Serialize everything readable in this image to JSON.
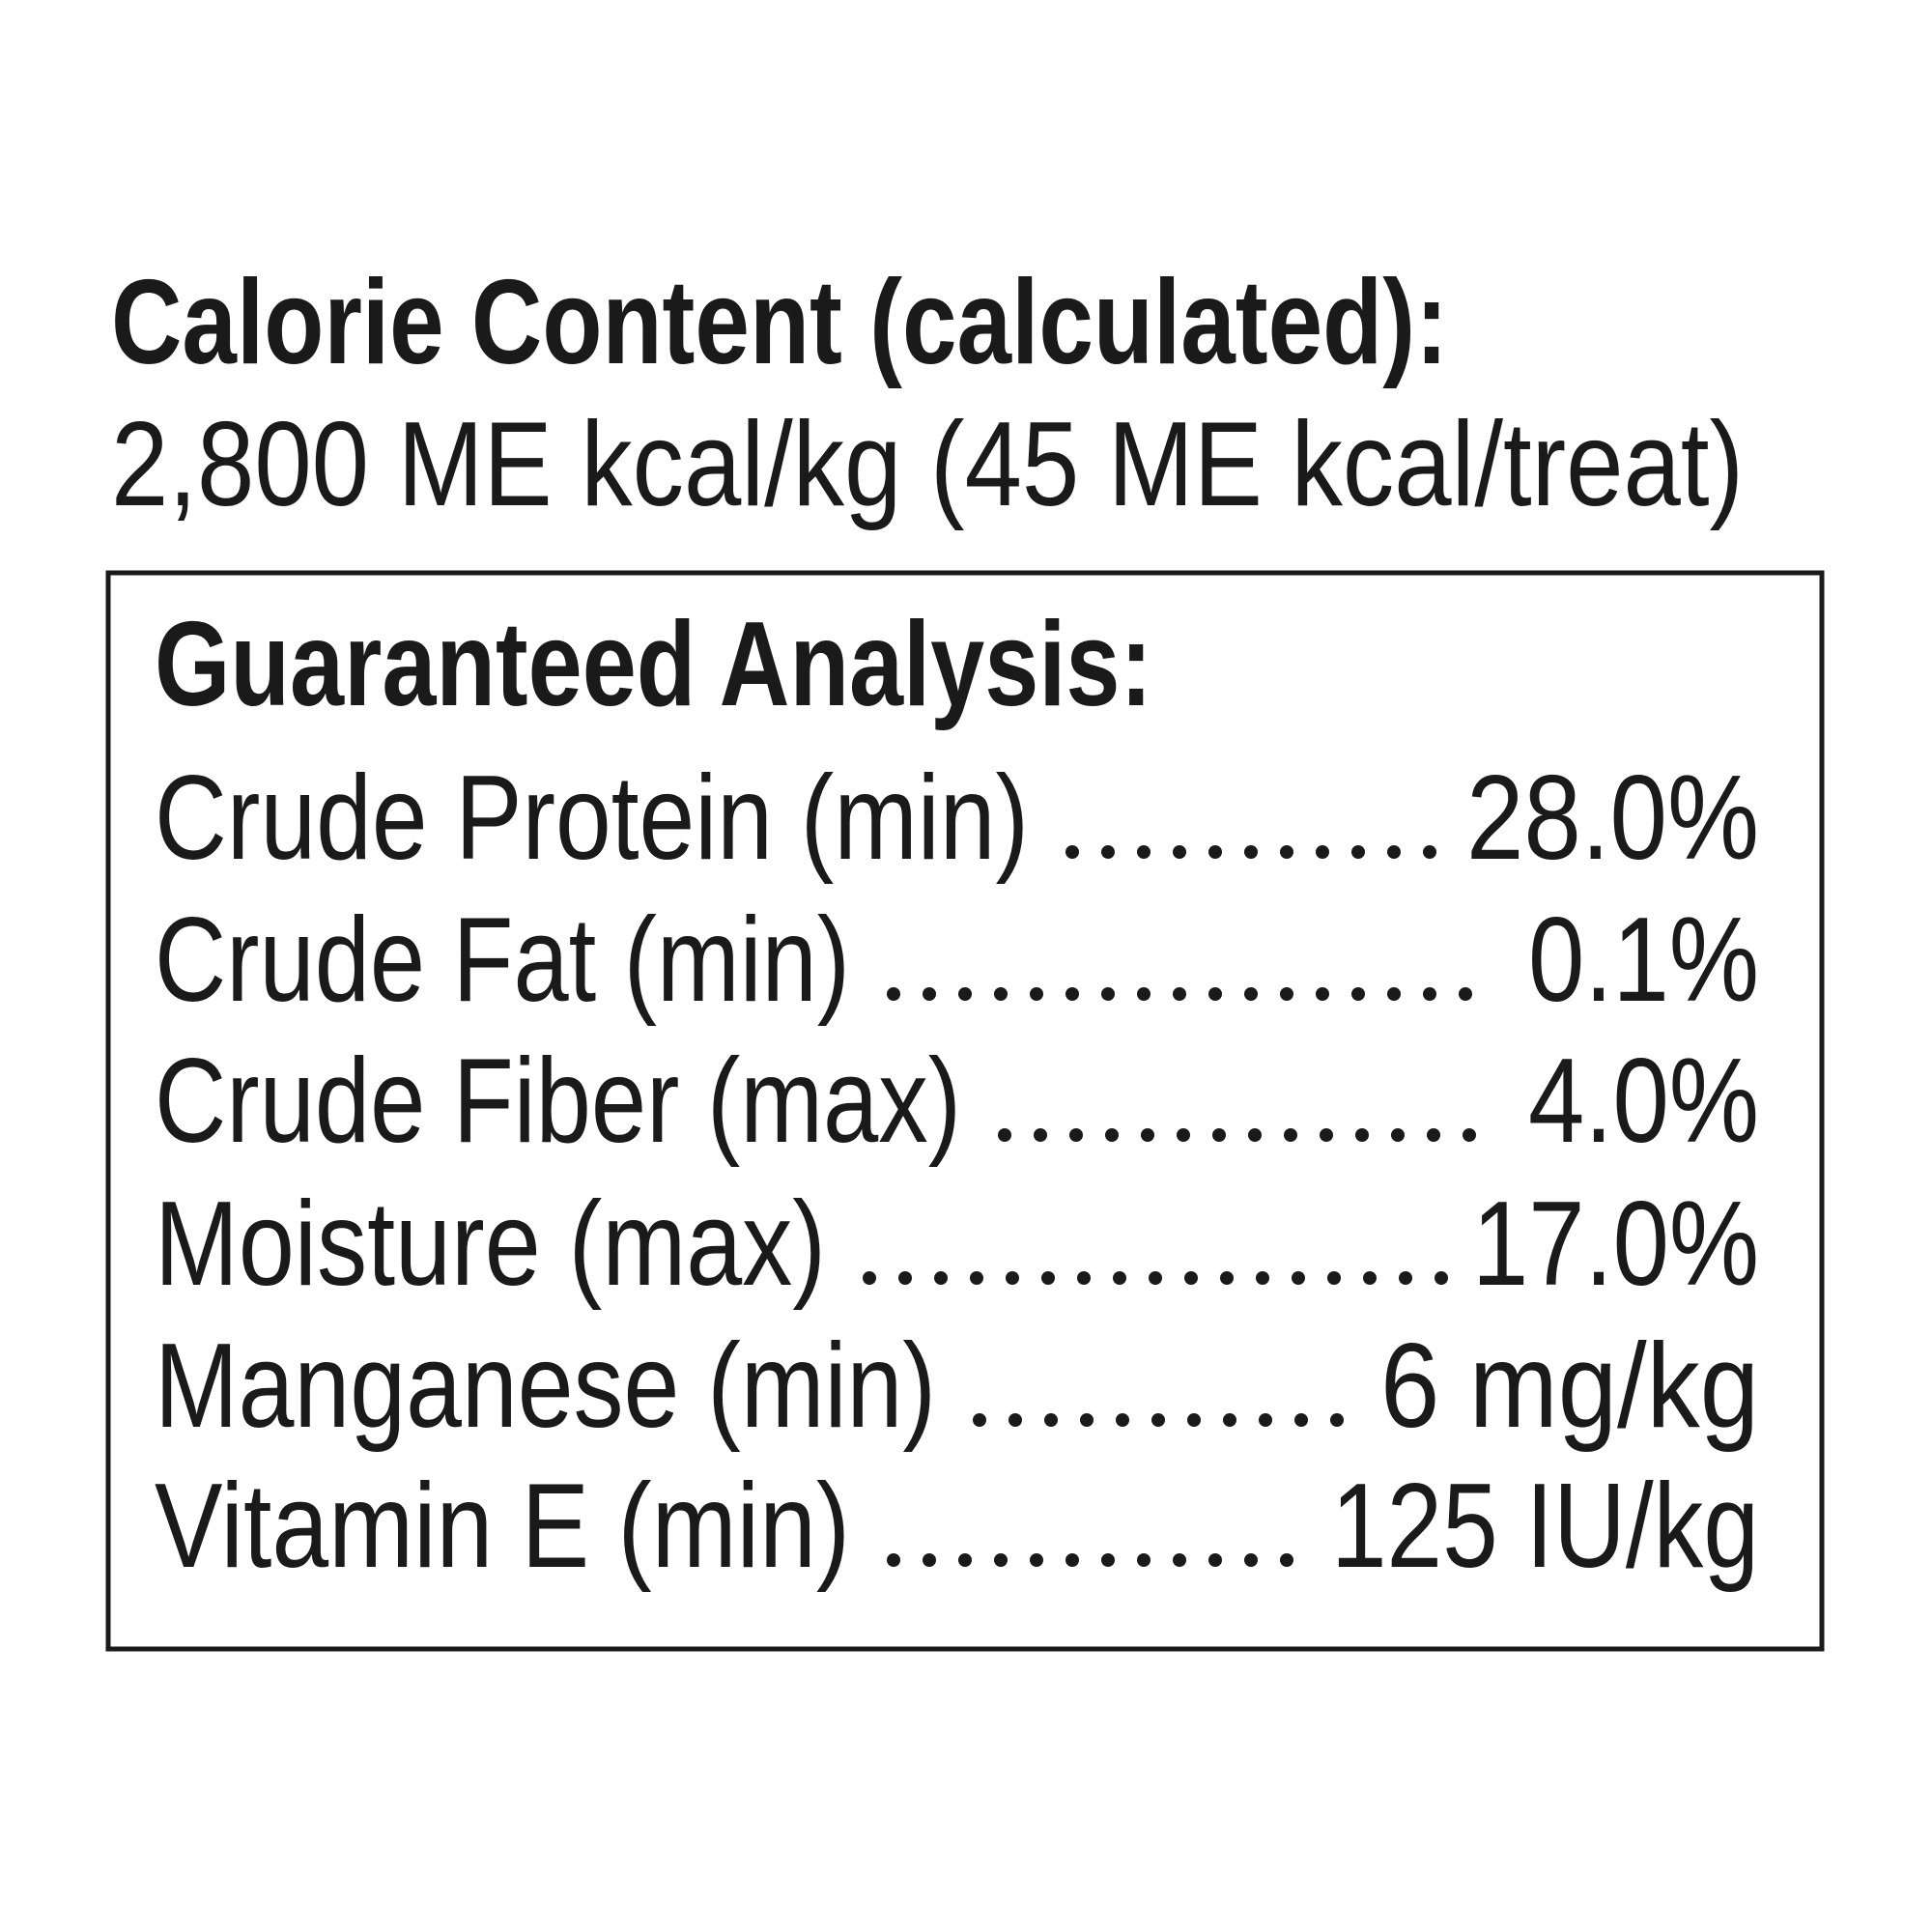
{
  "calorie": {
    "heading": "Calorie Content (calculated):",
    "text": "2,800 ME kcal/kg (45 ME kcal/treat)"
  },
  "analysis": {
    "title": "Guaranteed Analysis:",
    "rows": [
      {
        "label": "Crude Protein (min)",
        "value": "28.0%"
      },
      {
        "label": "Crude Fat (min)",
        "value": "0.1%"
      },
      {
        "label": "Crude Fiber (max)",
        "value": "4.0%"
      },
      {
        "label": "Moisture (max)",
        "value": "17.0%"
      },
      {
        "label": "Manganese (min)",
        "value": "6 mg/kg"
      },
      {
        "label": "Vitamin E (min)",
        "value": "125 IU/kg"
      }
    ]
  }
}
